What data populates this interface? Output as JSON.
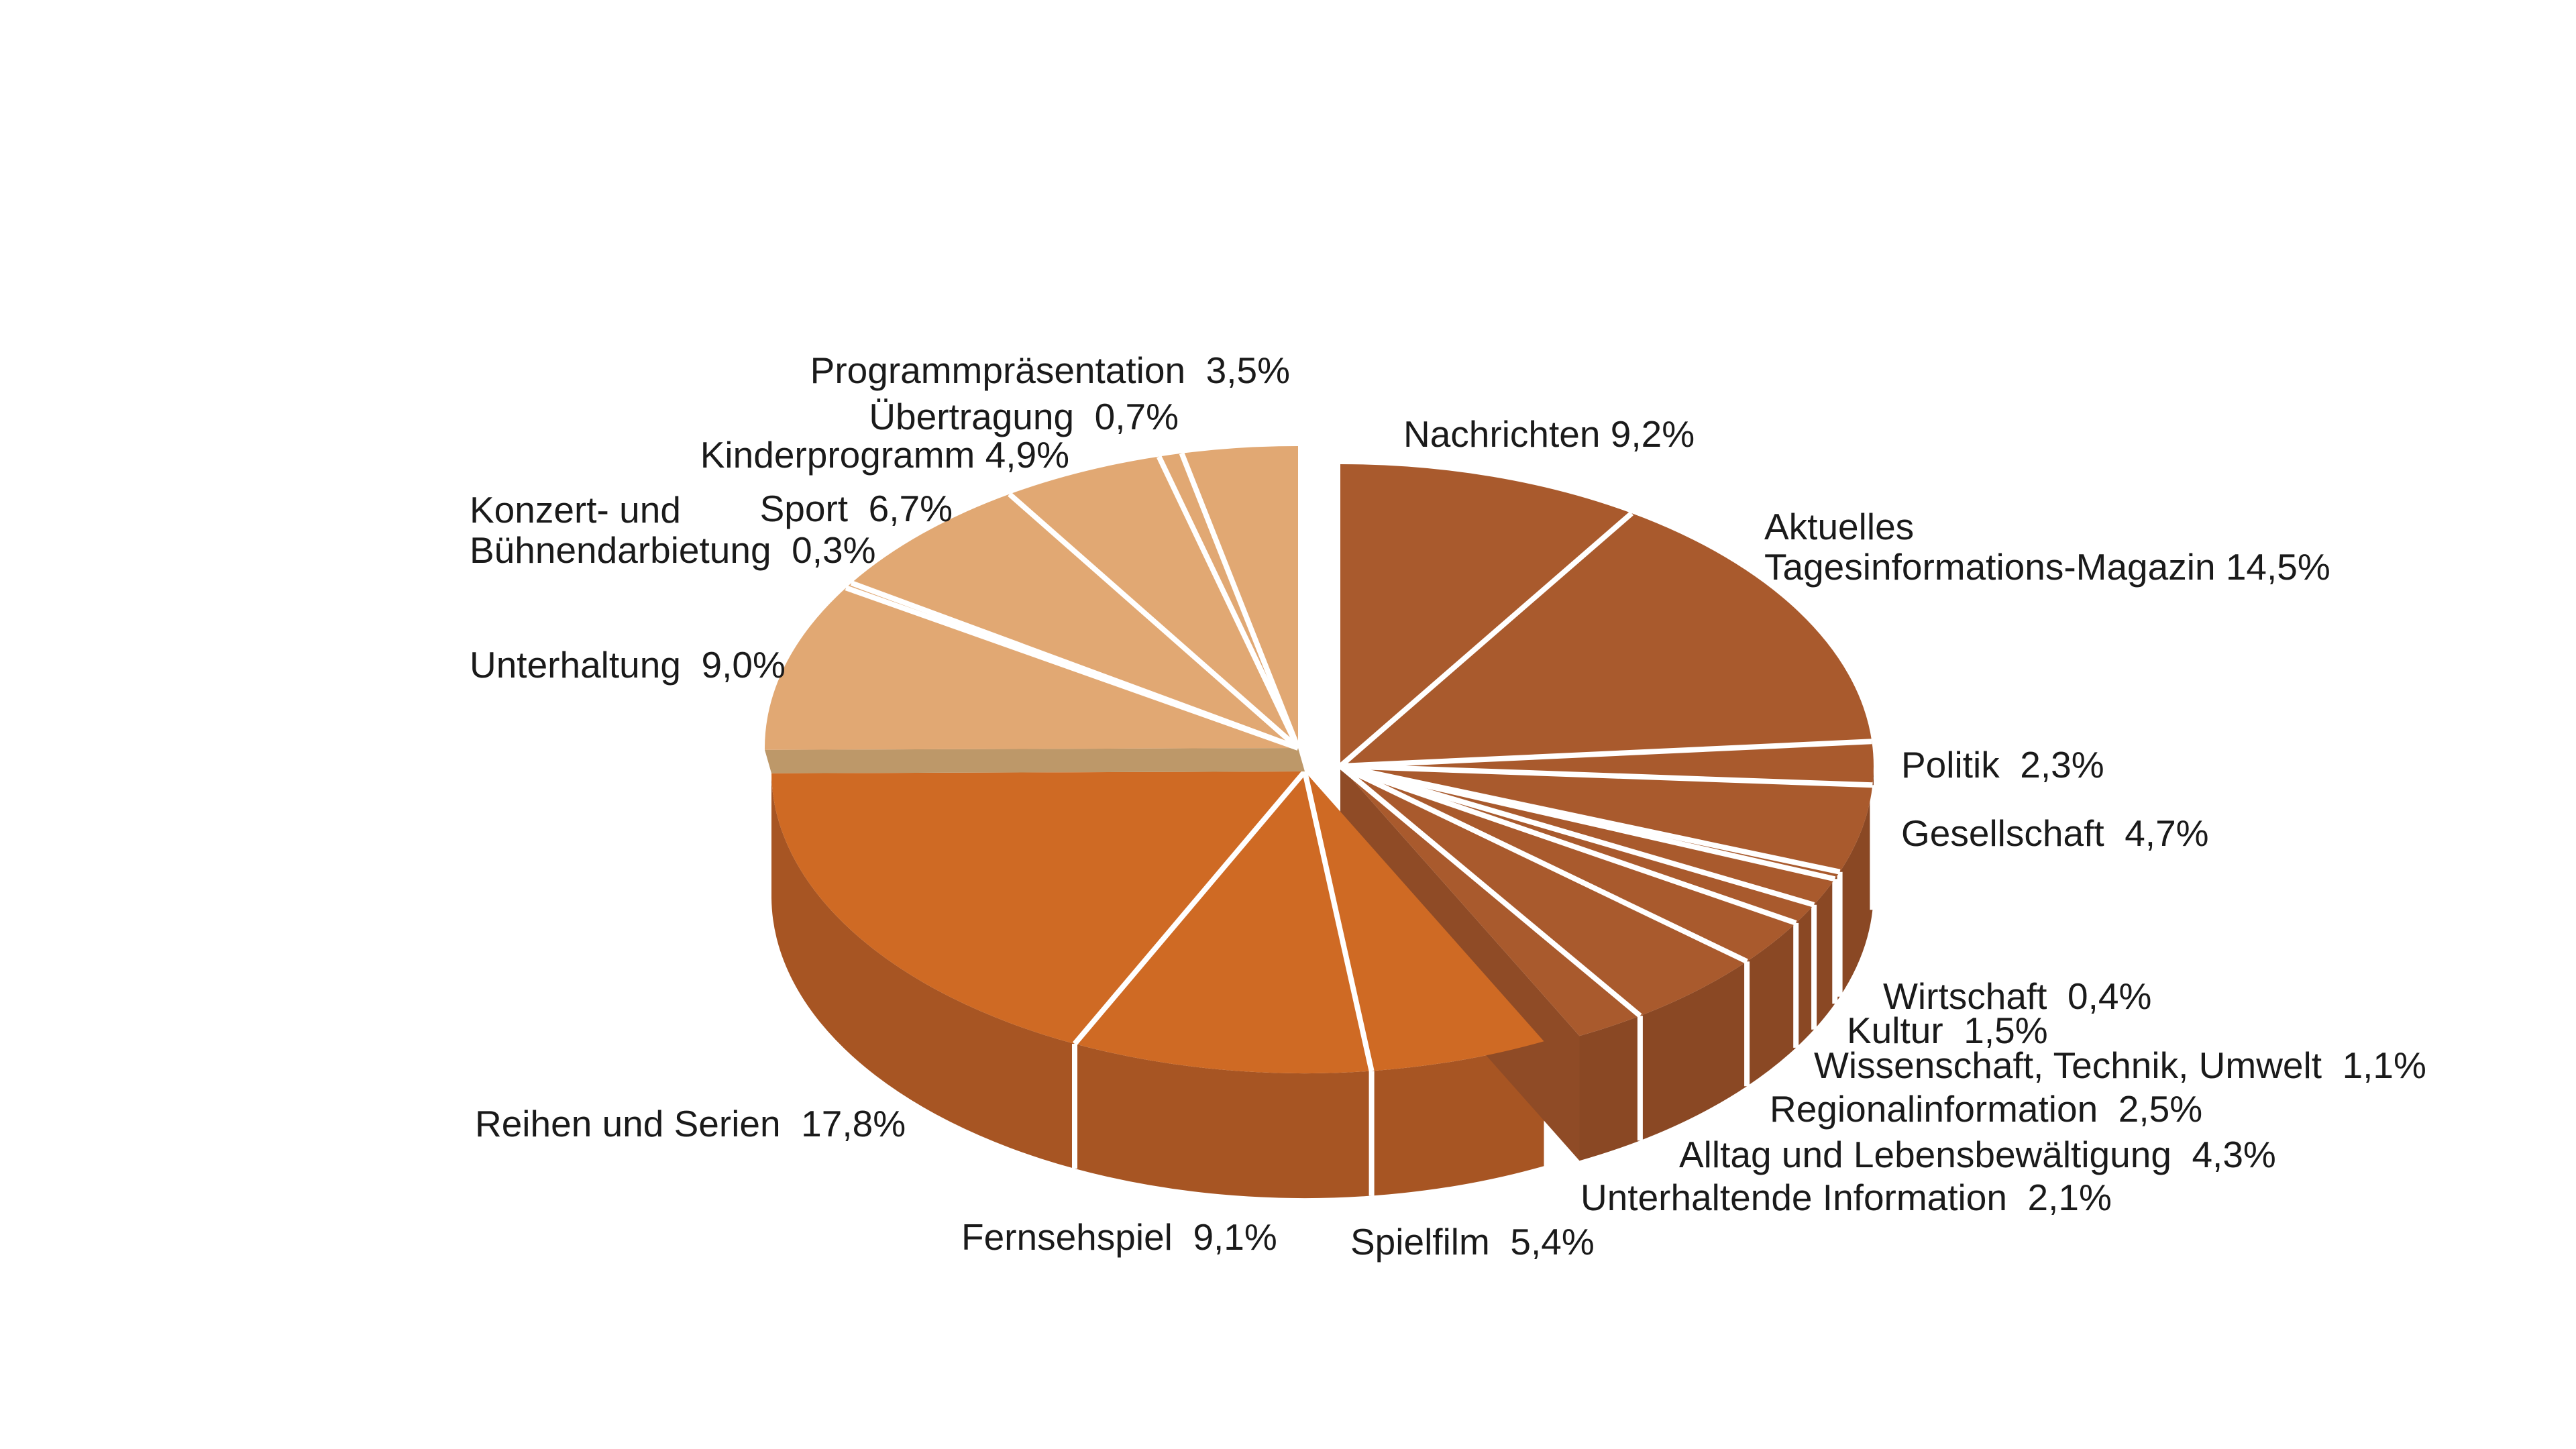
{
  "background_color": "#ffffff",
  "text_color": "#1a1a1a",
  "chart_data": {
    "type": "pie",
    "style": "3d-exploded",
    "unit": "%",
    "decimal_separator": ",",
    "clockwise": true,
    "start_angle_deg": 0,
    "separator_color": "#ffffff",
    "legend_position": "none",
    "title": "",
    "groups": {
      "info": {
        "top": "#A95A2D",
        "side": "#8A4824",
        "cut": "#8F4B26"
      },
      "fiction": {
        "top": "#CF6A24",
        "side": "#A75523",
        "cut": "#C36723"
      },
      "entertainment": {
        "top": "#E1A873",
        "bevel": "#BD9869"
      }
    },
    "slices": [
      {
        "key": "nachrichten",
        "name": "Nachrichten",
        "value": 9.2,
        "display": "Nachrichten 9,2%",
        "group": "info"
      },
      {
        "key": "aktuelles-tagesinformations-magazin",
        "name": "Aktuelles Tagesinformations-Magazin",
        "value": 14.5,
        "display": "Aktuelles\nTagesinformations-Magazin 14,5%",
        "group": "info"
      },
      {
        "key": "politik",
        "name": "Politik",
        "value": 2.3,
        "display": "Politik  2,3%",
        "group": "info"
      },
      {
        "key": "gesellschaft",
        "name": "Gesellschaft",
        "value": 4.7,
        "display": "Gesellschaft  4,7%",
        "group": "info"
      },
      {
        "key": "wirtschaft",
        "name": "Wirtschaft",
        "value": 0.4,
        "display": "Wirtschaft  0,4%",
        "group": "info"
      },
      {
        "key": "kultur",
        "name": "Kultur",
        "value": 1.5,
        "display": "Kultur  1,5%",
        "group": "info"
      },
      {
        "key": "wissenschaft-technik-umwelt",
        "name": "Wissenschaft, Technik, Umwelt",
        "value": 1.1,
        "display": "Wissenschaft, Technik, Umwelt  1,1%",
        "group": "info"
      },
      {
        "key": "regionalinformation",
        "name": "Regionalinformation",
        "value": 2.5,
        "display": "Regionalinformation  2,5%",
        "group": "info"
      },
      {
        "key": "alltag-und-lebensbewaeltigung",
        "name": "Alltag und Lebensbewältigung",
        "value": 4.3,
        "display": "Alltag und Lebensbewältigung  4,3%",
        "group": "info"
      },
      {
        "key": "unterhaltende-information",
        "name": "Unterhaltende Information",
        "value": 2.1,
        "display": "Unterhaltende Information  2,1%",
        "group": "info"
      },
      {
        "key": "spielfilm",
        "name": "Spielfilm",
        "value": 5.4,
        "display": "Spielfilm  5,4%",
        "group": "fiction"
      },
      {
        "key": "fernsehspiel",
        "name": "Fernsehspiel",
        "value": 9.1,
        "display": "Fernsehspiel  9,1%",
        "group": "fiction"
      },
      {
        "key": "reihen-und-serien",
        "name": "Reihen und Serien",
        "value": 17.8,
        "display": "Reihen und Serien  17,8%",
        "group": "fiction"
      },
      {
        "key": "unterhaltung",
        "name": "Unterhaltung",
        "value": 9.0,
        "display": "Unterhaltung  9,0%",
        "group": "entertainment"
      },
      {
        "key": "konzert-und-buehnendarbietung",
        "name": "Konzert- und Bühnendarbietung",
        "value": 0.3,
        "display": "Konzert- und\nBühnendarbietung  0,3%",
        "group": "entertainment"
      },
      {
        "key": "sport",
        "name": "Sport",
        "value": 6.7,
        "display": "Sport  6,7%",
        "group": "entertainment"
      },
      {
        "key": "kinderprogramm",
        "name": "Kinderprogramm",
        "value": 4.9,
        "display": "Kinderprogramm 4,9%",
        "group": "entertainment"
      },
      {
        "key": "uebertragung",
        "name": "Übertragung",
        "value": 0.7,
        "display": "Übertragung  0,7%",
        "group": "entertainment"
      },
      {
        "key": "programmpraesentation",
        "name": "Programmpräsentation",
        "value": 3.5,
        "display": "Programmpräsentation  3,5%",
        "group": "entertainment"
      }
    ]
  }
}
